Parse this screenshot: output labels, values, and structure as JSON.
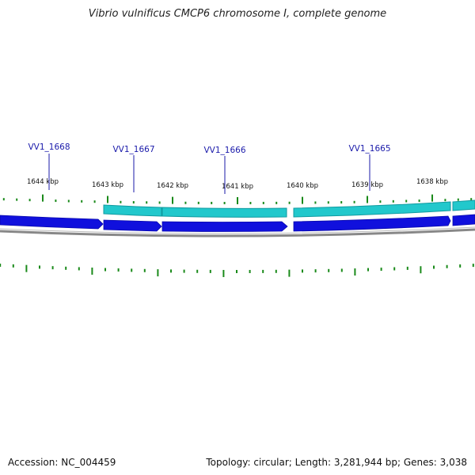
{
  "title": "Vibrio vulnificus CMCP6 chromosome I, complete genome",
  "footer": {
    "accession": "Accession: NC_004459",
    "stats": "Topology: circular; Length: 3,281,944 bp; Genes: 3,038"
  },
  "ruler": {
    "labels": [
      "1644 kbp",
      "1643 kbp",
      "1642 kbp",
      "1641 kbp",
      "1640 kbp",
      "1639 kbp",
      "1638 kbp"
    ]
  },
  "genes": [
    {
      "label": "VV1_1668"
    },
    {
      "label": "VV1_1667"
    },
    {
      "label": "VV1_1666"
    },
    {
      "label": "VV1_1665"
    }
  ],
  "colors": {
    "cds": "#1010dd",
    "feature": "#22c8cc",
    "ticks": "#1a8a1a",
    "gene_label": "#1a1aaa",
    "backbone": "#888888"
  }
}
